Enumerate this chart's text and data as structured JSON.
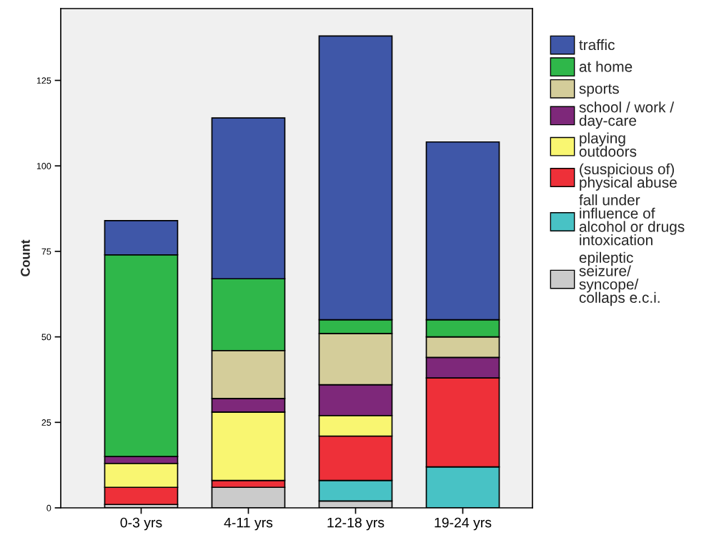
{
  "chart_data": {
    "type": "bar",
    "stacked": true,
    "ylabel": "Count",
    "categories": [
      "0-3 yrs",
      "4-11 yrs",
      "12-18 yrs",
      "19-24 yrs"
    ],
    "series": [
      {
        "name": "epileptic\nseizure/\nsyncope/\ncollaps e.c.i.",
        "color": "#cbcbcb",
        "values": [
          1,
          6,
          2,
          0
        ]
      },
      {
        "name": "fall under\ninfluence of\nalcohol or drugs\nintoxication",
        "color": "#48c2c5",
        "values": [
          0,
          0,
          6,
          12
        ]
      },
      {
        "name": "(suspicious of)\nphysical abuse",
        "color": "#ee3039",
        "values": [
          5,
          2,
          13,
          26
        ]
      },
      {
        "name": "playing\noutdoors",
        "color": "#f9f671",
        "values": [
          7,
          20,
          6,
          0
        ]
      },
      {
        "name": "school / work /\nday-care",
        "color": "#7e287a",
        "values": [
          2,
          4,
          9,
          6
        ]
      },
      {
        "name": "sports",
        "color": "#d4cd9a",
        "values": [
          0,
          14,
          15,
          6
        ]
      },
      {
        "name": "at home",
        "color": "#2fb74a",
        "values": [
          59,
          21,
          4,
          5
        ]
      },
      {
        "name": "traffic",
        "color": "#3f57a8",
        "values": [
          10,
          47,
          83,
          52
        ]
      }
    ],
    "ylim": [
      0,
      146
    ],
    "yticks": [
      0,
      25,
      50,
      75,
      100,
      125
    ],
    "grid": false,
    "legend": "right"
  }
}
